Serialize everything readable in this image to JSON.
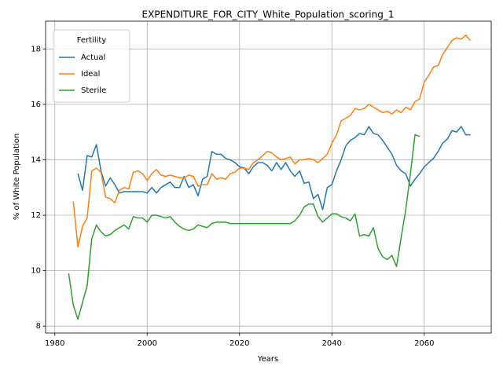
{
  "chart_data": {
    "type": "line",
    "title": "EXPENDITURE_FOR_CITY_White_Population_scoring_1",
    "x_label": "Years",
    "y_label": "% of White Population",
    "legend_title": "Fertility",
    "legend_position": "upper left",
    "grid": true,
    "xlim": [
      1978,
      2074.5
    ],
    "ylim": [
      7.75,
      19.0
    ],
    "xticks": [
      1980,
      2000,
      2020,
      2040,
      2060
    ],
    "yticks": [
      8,
      10,
      12,
      14,
      16,
      18
    ],
    "x": [
      1983,
      1984,
      1985,
      1986,
      1987,
      1988,
      1989,
      1990,
      1991,
      1992,
      1993,
      1994,
      1995,
      1996,
      1997,
      1998,
      1999,
      2000,
      2001,
      2002,
      2003,
      2004,
      2005,
      2006,
      2007,
      2008,
      2009,
      2010,
      2011,
      2012,
      2013,
      2014,
      2015,
      2016,
      2017,
      2018,
      2019,
      2020,
      2021,
      2022,
      2023,
      2024,
      2025,
      2026,
      2027,
      2028,
      2029,
      2030,
      2031,
      2032,
      2033,
      2034,
      2035,
      2036,
      2037,
      2038,
      2039,
      2040,
      2041,
      2042,
      2043,
      2044,
      2045,
      2046,
      2047,
      2048,
      2049,
      2050,
      2051,
      2052,
      2053,
      2054,
      2055,
      2056,
      2057,
      2058,
      2059,
      2060,
      2061,
      2062,
      2063,
      2064,
      2065,
      2066,
      2067,
      2068,
      2069,
      2070
    ],
    "series": [
      {
        "name": "Actual",
        "color": "#1f77b4",
        "values": [
          null,
          null,
          13.5,
          12.9,
          14.15,
          14.1,
          14.55,
          13.6,
          13.05,
          13.35,
          13.1,
          12.8,
          12.85,
          12.85,
          12.85,
          12.85,
          12.85,
          12.8,
          13.0,
          12.8,
          13.0,
          13.1,
          13.2,
          13.0,
          13.0,
          13.4,
          13.0,
          13.1,
          12.7,
          13.3,
          13.4,
          14.3,
          14.2,
          14.2,
          14.05,
          14.0,
          13.9,
          13.75,
          13.7,
          13.5,
          13.75,
          13.9,
          13.9,
          13.8,
          13.6,
          13.9,
          13.65,
          13.9,
          13.6,
          13.4,
          13.6,
          13.15,
          13.2,
          12.6,
          12.75,
          12.2,
          13.0,
          13.1,
          13.6,
          14.0,
          14.5,
          14.7,
          14.8,
          14.95,
          14.9,
          15.2,
          14.95,
          14.9,
          14.7,
          14.45,
          14.2,
          13.8,
          13.6,
          13.5,
          13.05,
          13.3,
          13.5,
          13.75,
          13.9,
          14.05,
          14.3,
          14.6,
          14.75,
          15.05,
          15.0,
          15.2,
          14.9,
          14.9
        ]
      },
      {
        "name": "Ideal",
        "color": "#ff7f0e",
        "values": [
          null,
          12.5,
          10.85,
          11.6,
          11.9,
          13.6,
          13.7,
          13.55,
          12.65,
          12.6,
          12.45,
          12.9,
          13.0,
          12.95,
          13.55,
          13.6,
          13.5,
          13.25,
          13.5,
          13.65,
          13.45,
          13.4,
          13.45,
          13.4,
          13.35,
          13.35,
          13.45,
          13.4,
          13.05,
          13.1,
          13.1,
          13.5,
          13.3,
          13.35,
          13.3,
          13.5,
          13.55,
          13.7,
          13.7,
          13.65,
          13.9,
          14.0,
          14.15,
          14.3,
          14.25,
          14.1,
          14.0,
          14.05,
          14.1,
          13.85,
          14.0,
          14.0,
          14.05,
          14.0,
          13.9,
          14.05,
          14.2,
          14.6,
          14.9,
          15.4,
          15.5,
          15.6,
          15.85,
          15.8,
          15.85,
          16.0,
          15.9,
          15.8,
          15.7,
          15.75,
          15.65,
          15.8,
          15.7,
          15.9,
          15.8,
          16.1,
          16.2,
          16.8,
          17.05,
          17.35,
          17.4,
          17.8,
          18.05,
          18.3,
          18.4,
          18.35,
          18.5,
          18.3
        ]
      },
      {
        "name": "Sterile",
        "color": "#2ca02c",
        "values": [
          9.9,
          8.75,
          8.25,
          8.85,
          9.45,
          11.15,
          11.65,
          11.4,
          11.25,
          11.3,
          11.45,
          11.55,
          11.65,
          11.5,
          11.95,
          11.9,
          11.9,
          11.75,
          12.0,
          12.0,
          11.95,
          11.9,
          11.95,
          11.75,
          11.6,
          11.5,
          11.45,
          11.5,
          11.65,
          11.6,
          11.55,
          11.7,
          11.75,
          11.75,
          11.75,
          11.7,
          11.7,
          11.7,
          11.7,
          11.7,
          11.7,
          11.7,
          11.7,
          11.7,
          11.7,
          11.7,
          11.7,
          11.7,
          11.7,
          11.8,
          12.0,
          12.3,
          12.4,
          12.4,
          11.95,
          11.75,
          11.9,
          12.05,
          12.05,
          11.95,
          11.9,
          11.8,
          12.05,
          11.25,
          11.3,
          11.25,
          11.55,
          10.8,
          10.5,
          10.4,
          10.55,
          10.15,
          11.2,
          12.2,
          13.5,
          14.9,
          14.85,
          null,
          null,
          null,
          null,
          null,
          null,
          null,
          null,
          null,
          null,
          null
        ]
      }
    ]
  }
}
